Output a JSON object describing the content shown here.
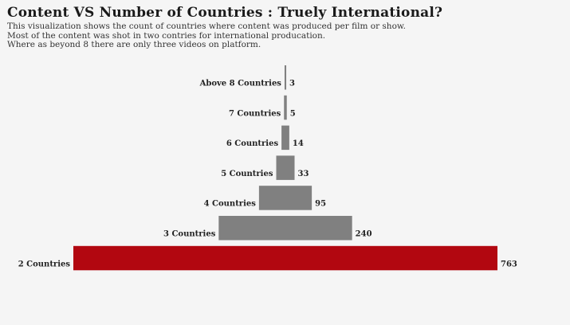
{
  "title": "Content VS Number of Countries : Truely International?",
  "subtitle": [
    "This visualization shows the count of countries where content was produced per film or show.",
    "Most of the content was shot in two contries for international producation.",
    "Where as beyond 8 there are only three videos on platform."
  ],
  "colors": {
    "highlight": "#b20710",
    "default": "#808080",
    "background": "#f5f5f5"
  },
  "chart_data": {
    "type": "bar",
    "orientation": "horizontal",
    "alignment": "centered",
    "categories": [
      "Above 8 Countries",
      "7 Countries",
      "6 Countries",
      "5 Countries",
      "4 Countries",
      "3 Countries",
      "2 Countries"
    ],
    "values": [
      3,
      5,
      14,
      33,
      95,
      240,
      763
    ],
    "highlight_category": "2 Countries",
    "title": "Content VS Number of Countries : Truely International?",
    "xlabel": "",
    "ylabel": "",
    "grid": false,
    "legend": "none"
  }
}
